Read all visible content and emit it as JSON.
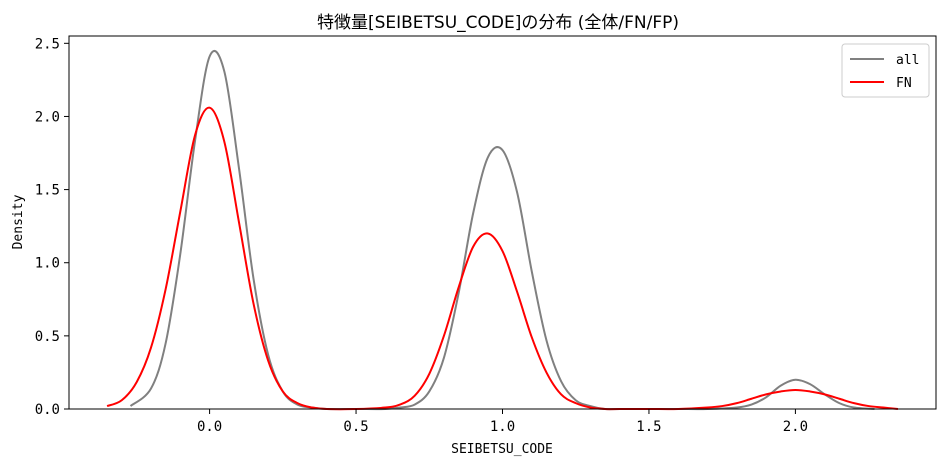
{
  "chart_data": {
    "type": "line",
    "title": "特徴量[SEIBETSU_CODE]の分布 (全体/FN/FP)",
    "xlabel": "SEIBETSU_CODE",
    "ylabel": "Density",
    "xlim": [
      -0.48,
      2.48
    ],
    "ylim": [
      0,
      2.55
    ],
    "xticks": [
      0.0,
      0.5,
      1.0,
      1.5,
      2.0
    ],
    "xtick_labels": [
      "0.0",
      "0.5",
      "1.0",
      "1.5",
      "2.0"
    ],
    "yticks": [
      0.0,
      0.5,
      1.0,
      1.5,
      2.0,
      2.5
    ],
    "ytick_labels": [
      "0.0",
      "0.5",
      "1.0",
      "1.5",
      "2.0",
      "2.5"
    ],
    "grid": false,
    "legend_position": "upper right",
    "series": [
      {
        "name": "all",
        "color": "#808080",
        "x": [
          -0.27,
          -0.2,
          -0.15,
          -0.1,
          -0.05,
          0.0,
          0.05,
          0.1,
          0.15,
          0.2,
          0.25,
          0.3,
          0.35,
          0.4,
          0.5,
          0.6,
          0.65,
          0.7,
          0.75,
          0.8,
          0.85,
          0.9,
          0.95,
          1.0,
          1.05,
          1.1,
          1.15,
          1.2,
          1.25,
          1.3,
          1.35,
          1.4,
          1.5,
          1.6,
          1.7,
          1.8,
          1.85,
          1.9,
          1.95,
          2.0,
          2.05,
          2.1,
          2.15,
          2.2,
          2.27
        ],
        "y": [
          0.02,
          0.14,
          0.45,
          1.06,
          1.83,
          2.41,
          2.31,
          1.65,
          0.89,
          0.37,
          0.12,
          0.03,
          0.01,
          0.0,
          0.0,
          0.0,
          0.01,
          0.03,
          0.12,
          0.35,
          0.79,
          1.34,
          1.72,
          1.77,
          1.48,
          0.94,
          0.47,
          0.19,
          0.06,
          0.02,
          0.0,
          0.0,
          0.0,
          0.0,
          0.0,
          0.01,
          0.03,
          0.08,
          0.16,
          0.2,
          0.17,
          0.1,
          0.04,
          0.01,
          0.0
        ]
      },
      {
        "name": "FN",
        "color": "#ff0000",
        "x": [
          -0.35,
          -0.3,
          -0.25,
          -0.2,
          -0.15,
          -0.1,
          -0.05,
          0.0,
          0.05,
          0.1,
          0.15,
          0.2,
          0.25,
          0.3,
          0.35,
          0.4,
          0.5,
          0.6,
          0.65,
          0.7,
          0.75,
          0.8,
          0.85,
          0.9,
          0.95,
          1.0,
          1.05,
          1.1,
          1.15,
          1.2,
          1.25,
          1.3,
          1.35,
          1.4,
          1.5,
          1.6,
          1.7,
          1.75,
          1.8,
          1.85,
          1.9,
          1.95,
          2.0,
          2.05,
          2.1,
          2.15,
          2.2,
          2.25,
          2.3,
          2.35
        ],
        "y": [
          0.02,
          0.06,
          0.18,
          0.42,
          0.82,
          1.35,
          1.87,
          2.06,
          1.83,
          1.28,
          0.72,
          0.33,
          0.12,
          0.04,
          0.01,
          0.0,
          0.0,
          0.01,
          0.03,
          0.09,
          0.24,
          0.5,
          0.83,
          1.11,
          1.2,
          1.08,
          0.8,
          0.49,
          0.25,
          0.1,
          0.04,
          0.01,
          0.0,
          0.0,
          0.0,
          0.0,
          0.01,
          0.02,
          0.04,
          0.07,
          0.1,
          0.12,
          0.13,
          0.12,
          0.1,
          0.07,
          0.04,
          0.02,
          0.01,
          0.0
        ]
      }
    ]
  }
}
